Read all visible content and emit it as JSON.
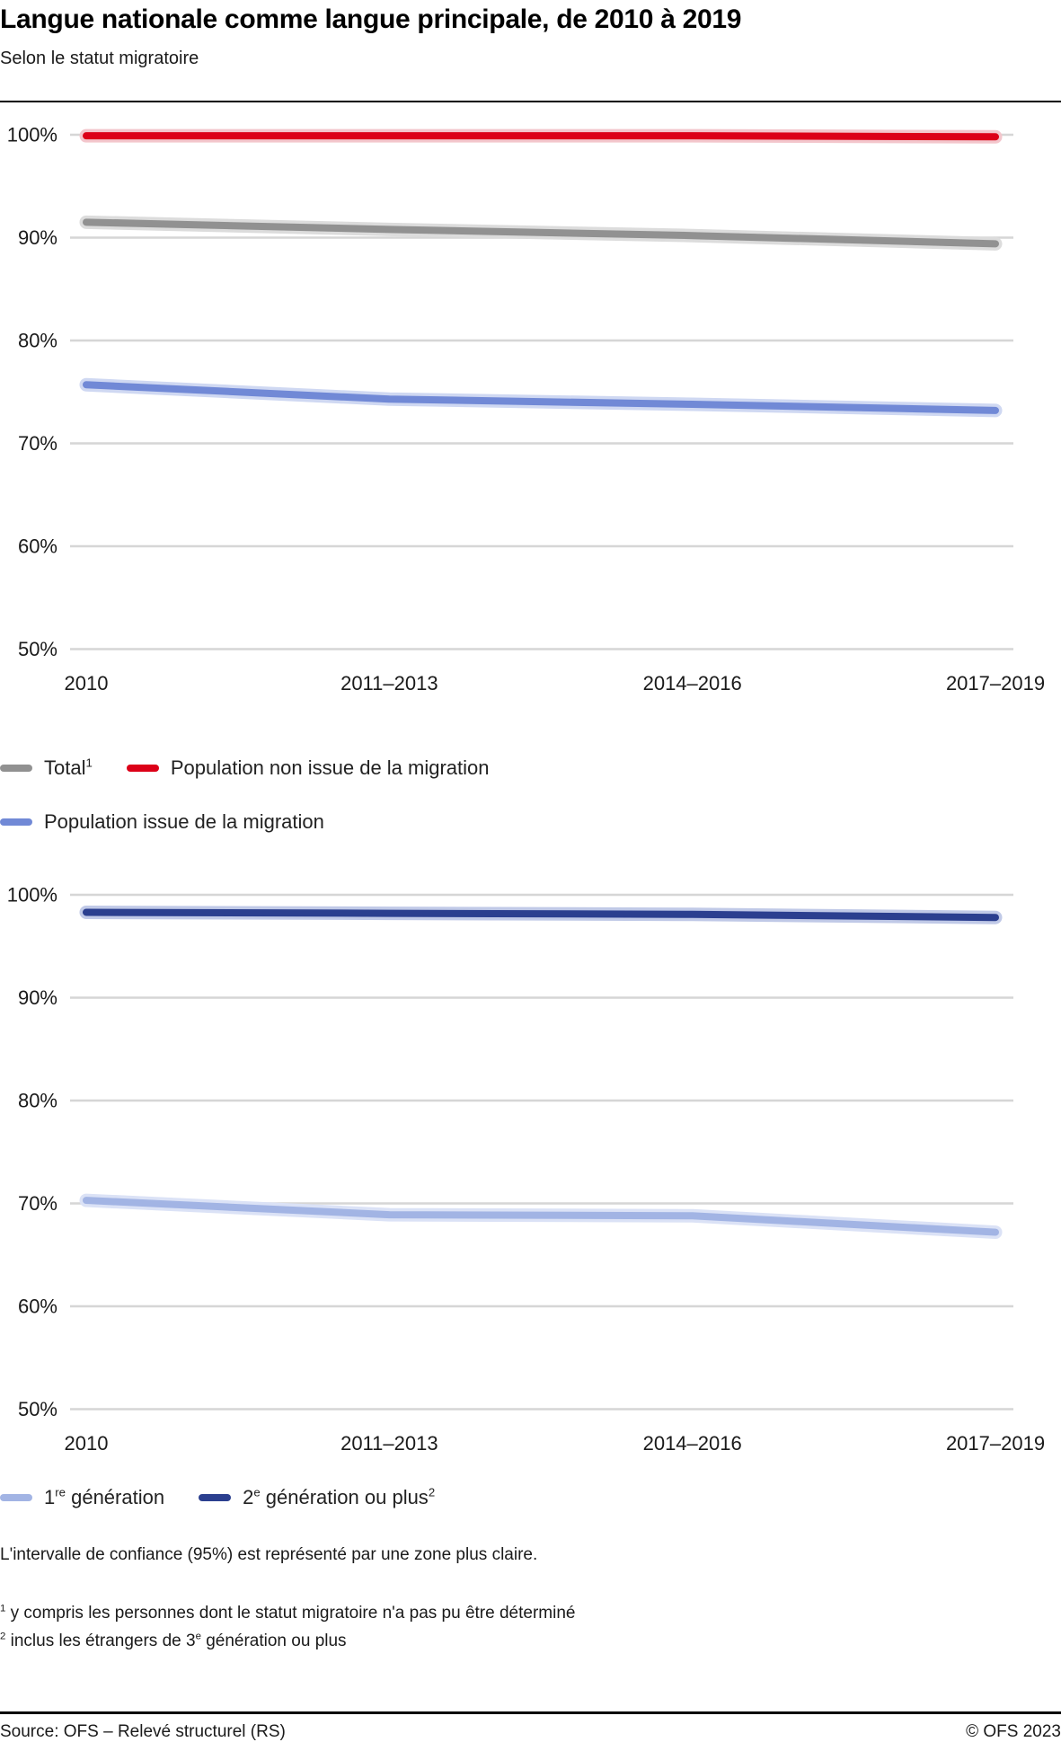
{
  "header": {
    "title": "Langue nationale comme langue principale, de 2010 à 2019",
    "subtitle": "Selon le statut migratoire"
  },
  "chart_data": [
    {
      "type": "line",
      "title": "Selon le statut migratoire (total, population issue / non issue de la migration)",
      "categories": [
        "2010",
        "2011–2013",
        "2014–2016",
        "2017–2019"
      ],
      "xlabel": "",
      "ylabel": "",
      "ylim": [
        50,
        100
      ],
      "grid": true,
      "yticks": [
        {
          "value": 100,
          "label": "100%"
        },
        {
          "value": 90,
          "label": "90%"
        },
        {
          "value": 80,
          "label": "80%"
        },
        {
          "value": 70,
          "label": "70%"
        },
        {
          "value": 60,
          "label": "60%"
        },
        {
          "value": 50,
          "label": "50%"
        }
      ],
      "series": [
        {
          "name": "Total (1)",
          "color": "#919191",
          "ci_color": "#dcdcdc",
          "values": [
            91.5,
            90.8,
            90.2,
            89.4
          ]
        },
        {
          "name": "Population non issue de la migration",
          "color": "#dc0018",
          "ci_color": "#f3c6cc",
          "values": [
            99.9,
            99.9,
            99.9,
            99.8
          ]
        },
        {
          "name": "Population issue de la migration",
          "color": "#7189d6",
          "ci_color": "#cfd8f2",
          "values": [
            75.7,
            74.3,
            73.8,
            73.2
          ]
        }
      ],
      "legend_position": "bottom",
      "legend": [
        {
          "color": "#919191",
          "parts": [
            {
              "t": "Total"
            },
            {
              "t": "1",
              "sup": true
            }
          ]
        },
        {
          "color": "#dc0018",
          "parts": [
            {
              "t": "Population non issue de la migration"
            }
          ]
        },
        {
          "color": "#7189d6",
          "parts": [
            {
              "t": "Population issue de la migration"
            }
          ]
        }
      ]
    },
    {
      "type": "line",
      "title": "Selon la génération (population issue de la migration)",
      "categories": [
        "2010",
        "2011–2013",
        "2014–2016",
        "2017–2019"
      ],
      "xlabel": "",
      "ylabel": "",
      "ylim": [
        50,
        100
      ],
      "grid": true,
      "yticks": [
        {
          "value": 100,
          "label": "100%"
        },
        {
          "value": 90,
          "label": "90%"
        },
        {
          "value": 80,
          "label": "80%"
        },
        {
          "value": 70,
          "label": "70%"
        },
        {
          "value": 60,
          "label": "60%"
        },
        {
          "value": 50,
          "label": "50%"
        }
      ],
      "series": [
        {
          "name": "1re génération",
          "color": "#a2b4e4",
          "ci_color": "#dbe2f6",
          "values": [
            70.3,
            68.9,
            68.8,
            67.2
          ]
        },
        {
          "name": "2e génération ou plus (2)",
          "color": "#2b3f8f",
          "ci_color": "#c0c9e7",
          "values": [
            98.3,
            98.2,
            98.1,
            97.8
          ]
        }
      ],
      "legend_position": "bottom",
      "legend": [
        {
          "color": "#a2b4e4",
          "parts": [
            {
              "t": "1"
            },
            {
              "t": "re",
              "sup": true
            },
            {
              "t": " génération"
            }
          ]
        },
        {
          "color": "#2b3f8f",
          "parts": [
            {
              "t": "2"
            },
            {
              "t": "e",
              "sup": true
            },
            {
              "t": " génération ou plus"
            },
            {
              "t": "2",
              "sup": true
            }
          ]
        }
      ]
    }
  ],
  "notes": {
    "ci_note": "L'intervalle de confiance (95%) est représenté par une zone plus claire.",
    "footnotes": [
      {
        "parts": [
          {
            "t": "1",
            "sup": true
          },
          {
            "t": " y compris les personnes dont le statut migratoire n'a pas pu être déterminé"
          }
        ]
      },
      {
        "parts": [
          {
            "t": "2",
            "sup": true
          },
          {
            "t": " inclus les étrangers de 3"
          },
          {
            "t": "e",
            "sup": true
          },
          {
            "t": " génération ou plus"
          }
        ]
      }
    ]
  },
  "footer": {
    "source": "Source: OFS – Relevé structurel (RS)",
    "copyright": "© OFS 2023"
  },
  "style": {
    "gridline_color": "#d6d6d6",
    "text_color": "#1a1a1a",
    "rule_color": "#000000"
  }
}
